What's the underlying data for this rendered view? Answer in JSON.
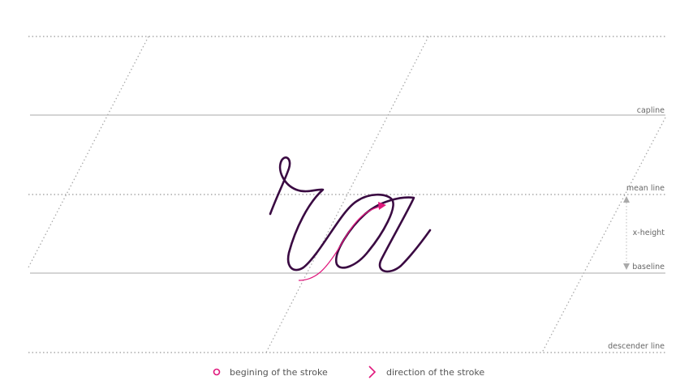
{
  "guides": {
    "capline": "capline",
    "mean_line": "mean line",
    "x_height": "x-height",
    "baseline": "baseline",
    "descender_line": "descender line"
  },
  "legend": {
    "start": "begining of the stroke",
    "direction": "direction of the stroke"
  }
}
